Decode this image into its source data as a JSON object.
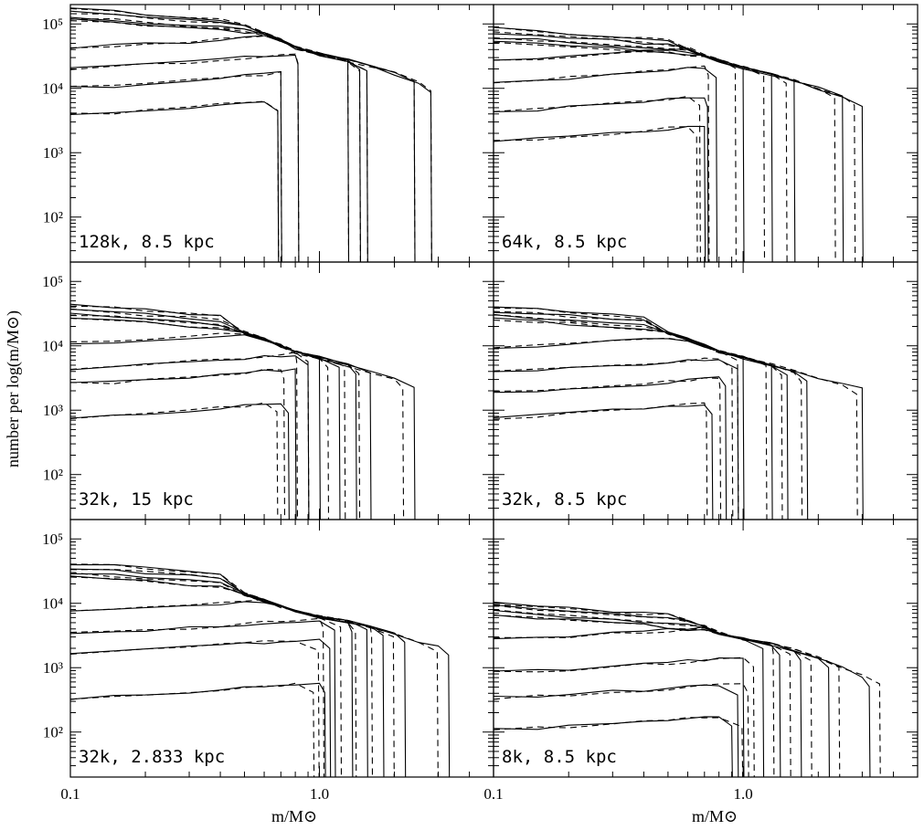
{
  "chart_data": {
    "type": "line",
    "layout": "3x2 grid of panels",
    "xlabel": "m/M⊙",
    "ylabel": "number per log(m/M⊙)",
    "xscale": "log",
    "yscale": "log",
    "xlim": [
      0.1,
      5.0
    ],
    "ylim": [
      20,
      200000
    ],
    "x_tick_labels": [
      "0.1",
      "1.0"
    ],
    "y_tick_labels": [
      "10²",
      "10³",
      "10⁴",
      "10⁵"
    ],
    "line_styles": [
      "solid",
      "dashed"
    ],
    "x_grid": [
      0.1,
      0.15,
      0.2,
      0.3,
      0.4,
      0.5,
      0.6,
      0.7,
      0.8,
      1.0,
      1.3,
      1.6,
      2.0,
      2.5,
      3.0,
      4.0,
      5.0
    ],
    "panels": [
      {
        "label": "128k, 8.5 kpc",
        "envelope": [
          null,
          null,
          null,
          null,
          null,
          100000,
          72000,
          56000,
          43000,
          34000,
          27000,
          22000,
          17000,
          12000,
          8500,
          7000,
          6000
        ],
        "levels": [
          170000,
          150000,
          125000,
          115000,
          52000,
          24000,
          12000,
          4600
        ],
        "cutoffs": [
          2.8,
          2.4,
          1.55,
          1.45,
          1.3,
          0.82,
          0.7,
          0.68
        ],
        "dash_shift": [
          1.0,
          1.0,
          1.0,
          1.0,
          1.0,
          1.0,
          1.0,
          1.0
        ]
      },
      {
        "label": "64k, 8.5 kpc",
        "envelope": [
          null,
          null,
          null,
          null,
          null,
          55000,
          42000,
          33000,
          27000,
          21000,
          16500,
          13000,
          10000,
          7500,
          5000,
          3700,
          3000
        ],
        "levels": [
          85000,
          72000,
          62000,
          55000,
          33000,
          15000,
          5200,
          1800
        ],
        "cutoffs": [
          3.0,
          2.5,
          1.6,
          1.3,
          1.0,
          0.78,
          0.72,
          0.7
        ],
        "dash_shift": [
          0.93,
          0.93,
          0.93,
          0.93,
          0.93,
          0.93,
          0.93,
          0.93
        ]
      },
      {
        "label": "32k, 15 kpc",
        "envelope": [
          null,
          null,
          null,
          null,
          null,
          16000,
          12500,
          10000,
          8000,
          6500,
          5000,
          4000,
          3200,
          2600,
          2100,
          1700,
          1450
        ],
        "levels": [
          42000,
          36000,
          31000,
          27000,
          13000,
          5200,
          3000,
          900
        ],
        "cutoffs": [
          2.4,
          1.6,
          1.4,
          1.2,
          1.0,
          0.9,
          0.8,
          0.75
        ],
        "dash_shift": [
          0.9,
          0.9,
          0.9,
          0.9,
          0.9,
          0.9,
          0.9,
          0.9
        ]
      },
      {
        "label": "32k, 8.5 kpc",
        "envelope": [
          null,
          null,
          null,
          null,
          null,
          16000,
          12500,
          10000,
          8000,
          6500,
          5000,
          4000,
          3200,
          2600,
          2100,
          1700,
          1450
        ],
        "levels": [
          40000,
          34000,
          29000,
          26000,
          11000,
          4600,
          2200,
          900
        ],
        "cutoffs": [
          3.0,
          1.8,
          1.5,
          1.3,
          1.0,
          0.95,
          0.85,
          0.75
        ],
        "dash_shift": [
          0.95,
          0.95,
          0.95,
          0.95,
          0.95,
          0.95,
          0.95,
          0.95
        ]
      },
      {
        "label": "32k, 2.833 kpc",
        "envelope": [
          null,
          null,
          null,
          null,
          null,
          14000,
          11000,
          9000,
          7500,
          6200,
          5200,
          4300,
          3300,
          2600,
          2100,
          1700,
          1400
        ],
        "levels": [
          42000,
          35000,
          30000,
          26000,
          9000,
          4000,
          2000,
          400
        ],
        "cutoffs": [
          3.3,
          2.2,
          1.8,
          1.55,
          1.35,
          1.15,
          1.1,
          1.05
        ],
        "dash_shift": [
          0.9,
          0.9,
          0.9,
          0.9,
          0.9,
          0.9,
          0.9,
          0.9
        ]
      },
      {
        "label": "8k, 8.5 kpc",
        "envelope": [
          null,
          null,
          null,
          null,
          null,
          6500,
          5200,
          4300,
          3500,
          2800,
          2300,
          1900,
          1400,
          1000,
          750,
          500,
          370
        ],
        "levels": [
          10000,
          9000,
          7500,
          6500,
          3300,
          1000,
          400,
          130
        ],
        "cutoffs": [
          3.2,
          2.2,
          1.7,
          1.4,
          1.2,
          1.0,
          0.95,
          0.9
        ],
        "dash_shift": [
          1.1,
          1.1,
          1.1,
          1.1,
          1.1,
          1.1,
          1.1,
          1.1
        ]
      }
    ]
  }
}
